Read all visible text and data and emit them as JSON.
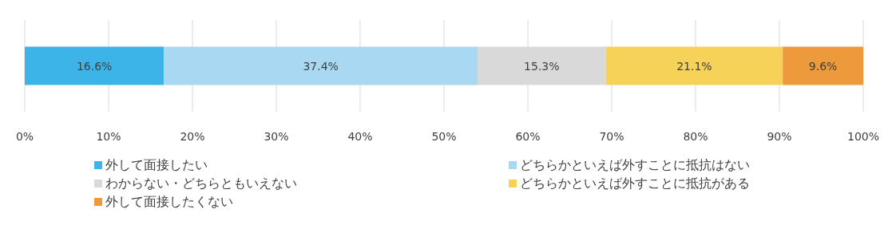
{
  "chart_data": {
    "type": "bar",
    "orientation": "horizontal",
    "stacked": true,
    "categories": [
      null
    ],
    "series": [
      {
        "name": "外して面接したい",
        "color": "#3cb4e8",
        "values": [
          16.6
        ],
        "value_labels": [
          "16.6%"
        ]
      },
      {
        "name": "どちらかといえば外すことに抵抗はない",
        "color": "#a9d9f2",
        "values": [
          37.4
        ],
        "value_labels": [
          "37.4%"
        ]
      },
      {
        "name": "わからない・どちらともいえない",
        "color": "#d9d9d9",
        "values": [
          15.3
        ],
        "value_labels": [
          "15.3%"
        ]
      },
      {
        "name": "どちらかといえば外すことに抵抗がある",
        "color": "#f7d258",
        "values": [
          21.1
        ],
        "value_labels": [
          "21.1%"
        ]
      },
      {
        "name": "外して面接したくない",
        "color": "#ec9a3c",
        "values": [
          9.6
        ],
        "value_labels": [
          "9.6%"
        ]
      }
    ],
    "xlim": [
      0,
      100
    ],
    "xticks": [
      {
        "value": 0,
        "label": "0%"
      },
      {
        "value": 10,
        "label": "10%"
      },
      {
        "value": 20,
        "label": "20%"
      },
      {
        "value": 30,
        "label": "30%"
      },
      {
        "value": 40,
        "label": "40%"
      },
      {
        "value": 50,
        "label": "50%"
      },
      {
        "value": 60,
        "label": "60%"
      },
      {
        "value": 70,
        "label": "70%"
      },
      {
        "value": 80,
        "label": "80%"
      },
      {
        "value": 90,
        "label": "90%"
      },
      {
        "value": 100,
        "label": "100%"
      }
    ],
    "grid": "x",
    "legend": "bottom"
  }
}
